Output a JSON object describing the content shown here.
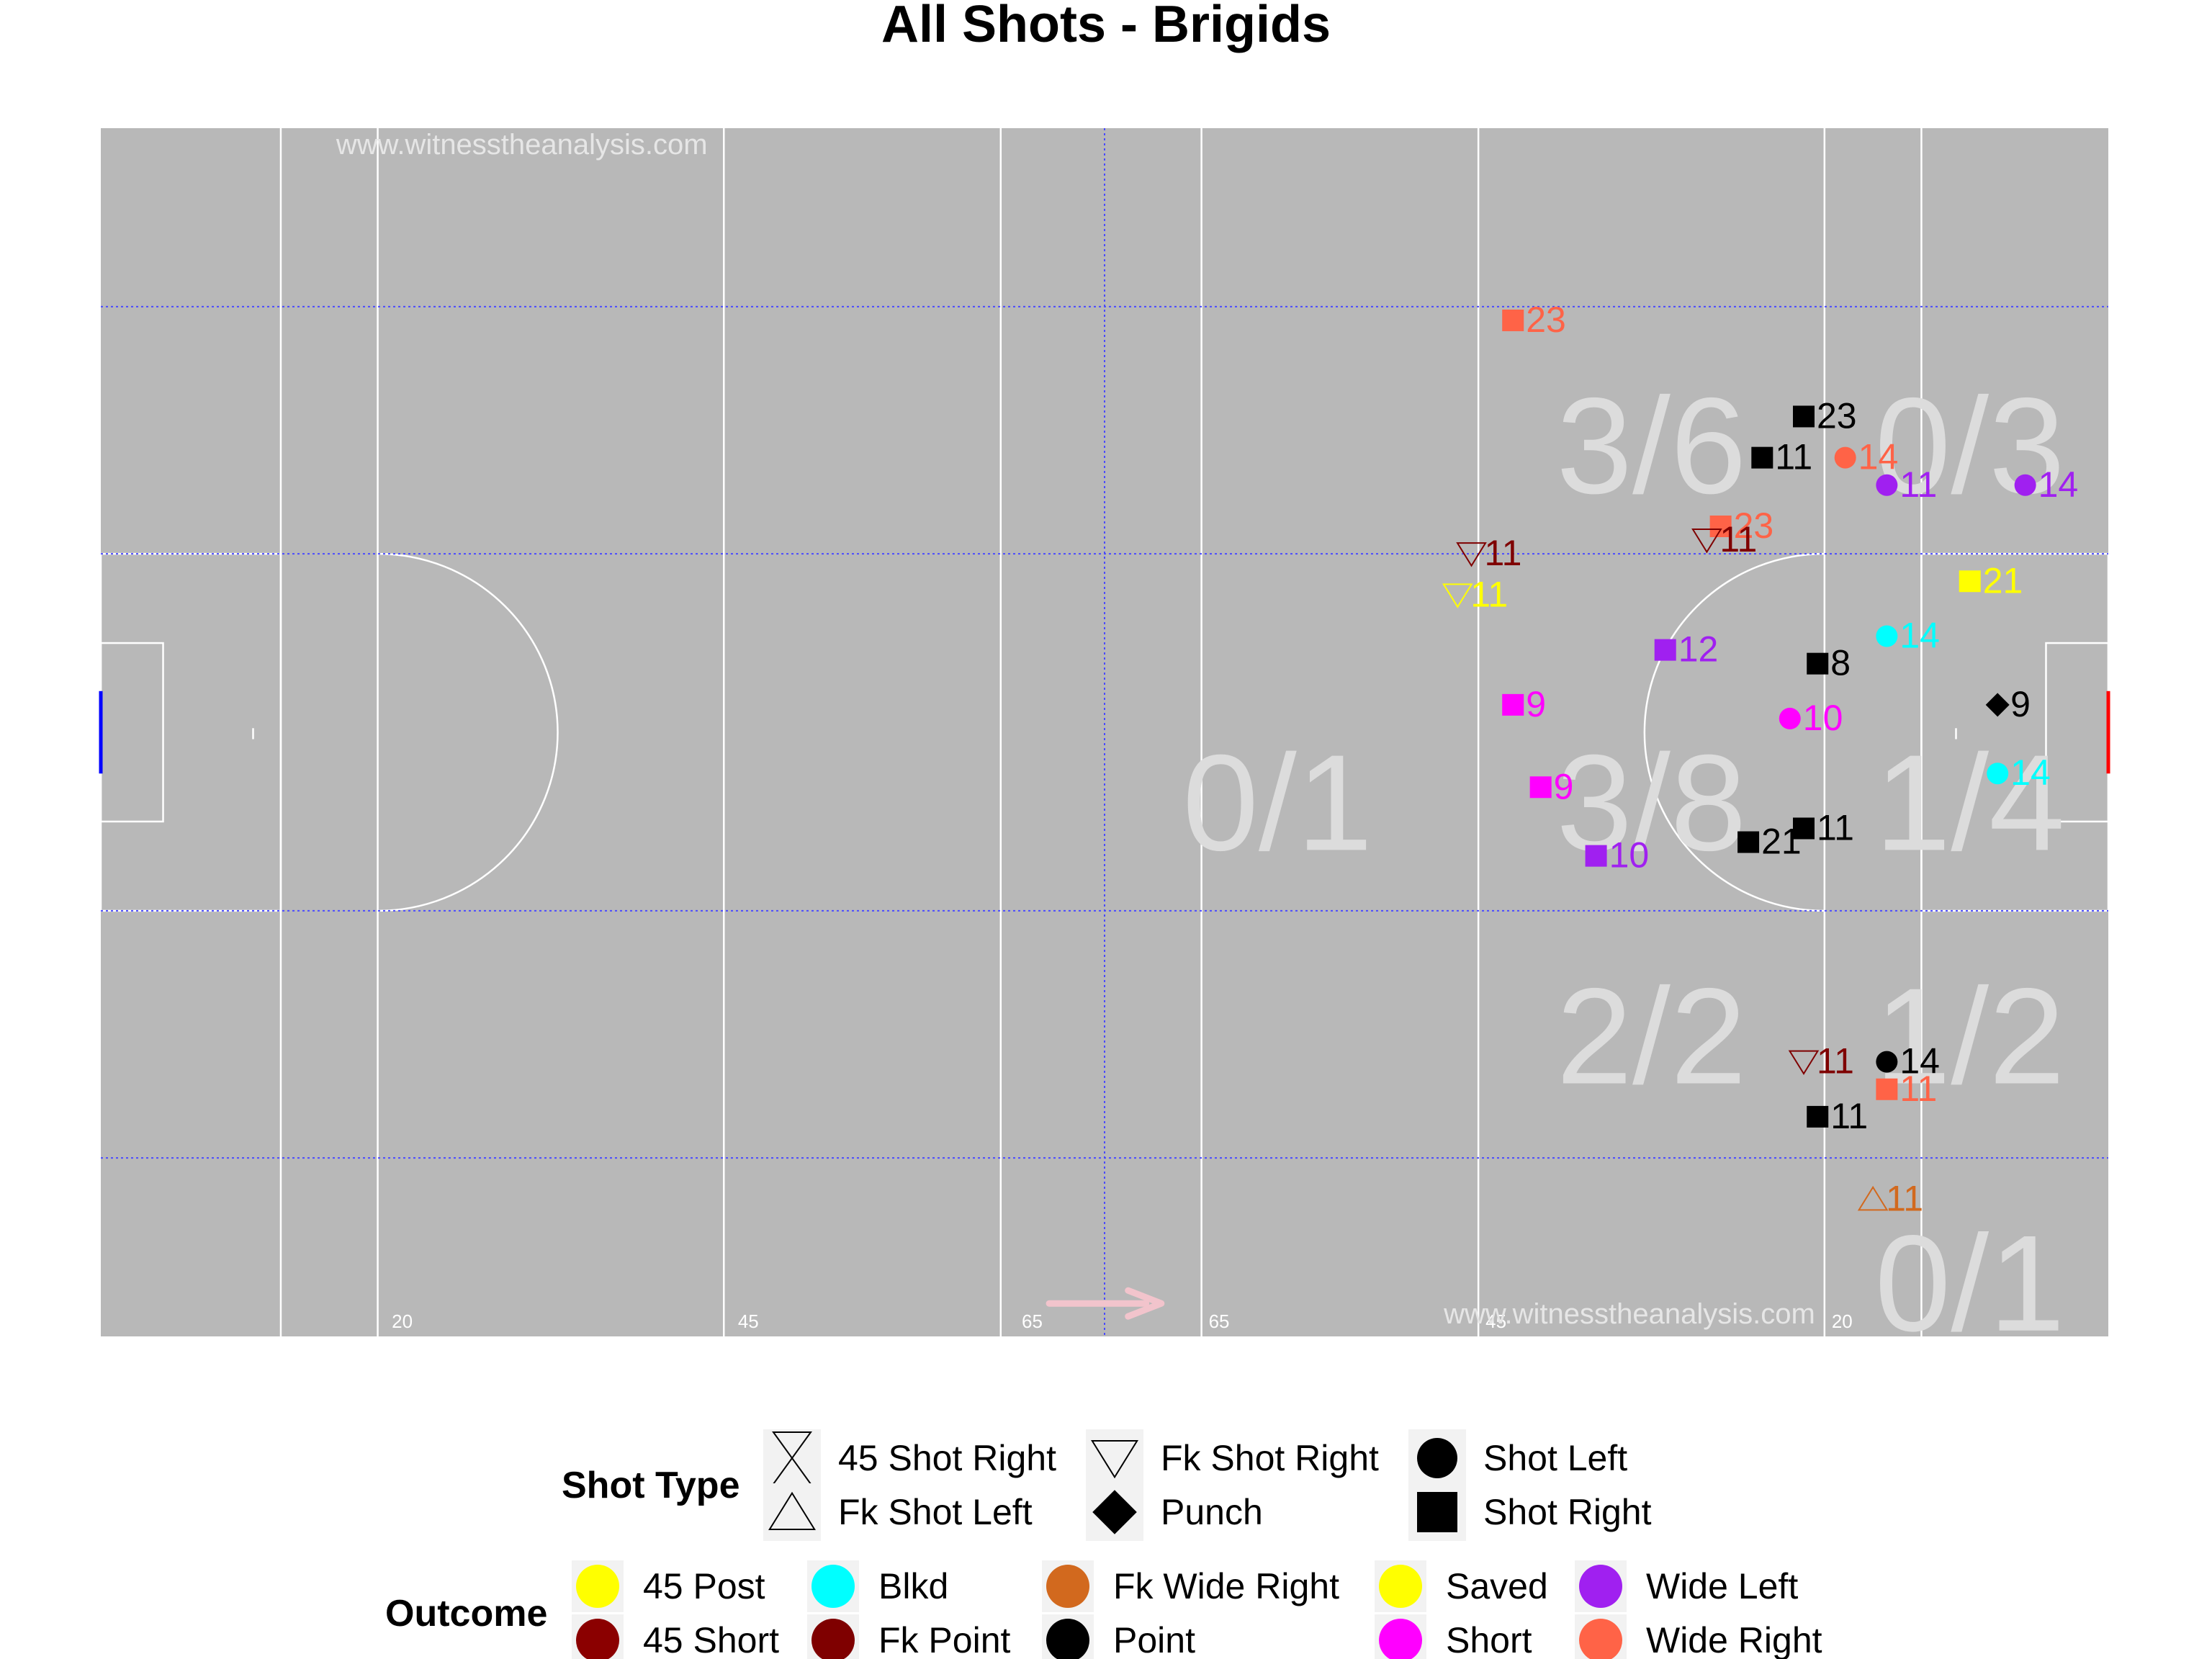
{
  "chart_data": {
    "type": "scatter",
    "title": "All Shots - Brigids",
    "watermark": "www.witnesstheanalysis.com",
    "pitch": {
      "xlim": [
        0,
        145
      ],
      "ylim": [
        0,
        88
      ],
      "distance_markers": [
        {
          "x": 20.5,
          "label": "20"
        },
        {
          "x": 45.5,
          "label": "45"
        },
        {
          "x": 66,
          "label": "65"
        },
        {
          "x": 79.5,
          "label": "65"
        },
        {
          "x": 99.5,
          "label": "45"
        },
        {
          "x": 124.5,
          "label": "20"
        }
      ],
      "attack_direction": "right",
      "arrow_color": "#f2c4cc",
      "pitch_color": "#b8b8b8",
      "left_goal_color": "#0000ff",
      "right_goal_color": "#ff0000"
    },
    "zones": [
      {
        "label": "3/6",
        "x": 112,
        "y": 65
      },
      {
        "label": "0/3",
        "x": 135,
        "y": 65
      },
      {
        "label": "0/1",
        "x": 85,
        "y": 39
      },
      {
        "label": "3/8",
        "x": 112,
        "y": 39
      },
      {
        "label": "1/4",
        "x": 135,
        "y": 39
      },
      {
        "label": "2/2",
        "x": 112,
        "y": 22
      },
      {
        "label": "1/2",
        "x": 135,
        "y": 22
      },
      {
        "label": "0/1",
        "x": 135,
        "y": 4
      }
    ],
    "outcome_colors": {
      "45 Post": "#ffff00",
      "45 Short": "#8b0000",
      "Blkd": "#00ffff",
      "Fk Point": "#7f0000",
      "Fk Wide Right": "#d2691e",
      "Point": "#000000",
      "Saved": "#ffff00",
      "Short": "#ff00ff",
      "Wide Left": "#a020f0",
      "Wide Right": "#ff6347"
    },
    "shot_types": [
      "45 Shot Right",
      "Fk Shot Left",
      "Fk Shot Right",
      "Punch",
      "Shot Left",
      "Shot Right"
    ],
    "points": [
      {
        "x": 102,
        "y": 74,
        "label": "23",
        "shape": "Shot Right",
        "outcome": "Wide Right"
      },
      {
        "x": 123,
        "y": 67,
        "label": "23",
        "shape": "Shot Right",
        "outcome": "Point"
      },
      {
        "x": 120,
        "y": 64,
        "label": "11",
        "shape": "Shot Right",
        "outcome": "Point"
      },
      {
        "x": 126,
        "y": 64,
        "label": "14",
        "shape": "Shot Left",
        "outcome": "Wide Right"
      },
      {
        "x": 129,
        "y": 62,
        "label": "11",
        "shape": "Shot Left",
        "outcome": "Wide Left"
      },
      {
        "x": 139,
        "y": 62,
        "label": "14",
        "shape": "Shot Left",
        "outcome": "Wide Left"
      },
      {
        "x": 117,
        "y": 59,
        "label": "23",
        "shape": "Shot Right",
        "outcome": "Wide Right"
      },
      {
        "x": 116,
        "y": 58,
        "label": "11",
        "shape": "Fk Shot Right",
        "outcome": "Fk Point"
      },
      {
        "x": 99,
        "y": 57,
        "label": "11",
        "shape": "Fk Shot Right",
        "outcome": "Fk Point"
      },
      {
        "x": 98,
        "y": 54,
        "label": "11",
        "shape": "Fk Shot Right",
        "outcome": "Saved"
      },
      {
        "x": 135,
        "y": 55,
        "label": "21",
        "shape": "Shot Right",
        "outcome": "Saved"
      },
      {
        "x": 129,
        "y": 51,
        "label": "14",
        "shape": "Shot Left",
        "outcome": "Blkd"
      },
      {
        "x": 113,
        "y": 50,
        "label": "12",
        "shape": "Shot Right",
        "outcome": "Wide Left"
      },
      {
        "x": 124,
        "y": 49,
        "label": "8",
        "shape": "Shot Right",
        "outcome": "Point"
      },
      {
        "x": 102,
        "y": 46,
        "label": "9",
        "shape": "Shot Right",
        "outcome": "Short"
      },
      {
        "x": 122,
        "y": 45,
        "label": "10",
        "shape": "Shot Left",
        "outcome": "Short"
      },
      {
        "x": 137,
        "y": 46,
        "label": "9",
        "shape": "Punch",
        "outcome": "Point"
      },
      {
        "x": 104,
        "y": 40,
        "label": "9",
        "shape": "Shot Right",
        "outcome": "Short"
      },
      {
        "x": 137,
        "y": 41,
        "label": "14",
        "shape": "Shot Left",
        "outcome": "Blkd"
      },
      {
        "x": 123,
        "y": 37,
        "label": "11",
        "shape": "Shot Right",
        "outcome": "Point"
      },
      {
        "x": 119,
        "y": 36,
        "label": "21",
        "shape": "Shot Right",
        "outcome": "Point"
      },
      {
        "x": 108,
        "y": 35,
        "label": "10",
        "shape": "Shot Right",
        "outcome": "Wide Left"
      },
      {
        "x": 123,
        "y": 20,
        "label": "11",
        "shape": "Fk Shot Right",
        "outcome": "Fk Point"
      },
      {
        "x": 129,
        "y": 20,
        "label": "14",
        "shape": "Shot Left",
        "outcome": "Point"
      },
      {
        "x": 129,
        "y": 18,
        "label": "11",
        "shape": "Shot Right",
        "outcome": "Wide Right"
      },
      {
        "x": 124,
        "y": 16,
        "label": "11",
        "shape": "Shot Right",
        "outcome": "Point"
      },
      {
        "x": 128,
        "y": 10,
        "label": "11",
        "shape": "Fk Shot Left",
        "outcome": "Fk Wide Right"
      }
    ],
    "legend": {
      "shot_type_title": "Shot Type",
      "shot_type_items": [
        {
          "label": "45 Shot Right",
          "shape": "45 Shot Right"
        },
        {
          "label": "Fk Shot Left",
          "shape": "Fk Shot Left"
        },
        {
          "label": "Fk Shot Right",
          "shape": "Fk Shot Right"
        },
        {
          "label": "Punch",
          "shape": "Punch"
        },
        {
          "label": "Shot Left",
          "shape": "Shot Left"
        },
        {
          "label": "Shot Right",
          "shape": "Shot Right"
        }
      ],
      "outcome_title": "Outcome",
      "outcome_items": [
        {
          "label": "45 Post",
          "color": "#ffff00"
        },
        {
          "label": "45 Short",
          "color": "#8b0000"
        },
        {
          "label": "Blkd",
          "color": "#00ffff"
        },
        {
          "label": "Fk Point",
          "color": "#7f0000"
        },
        {
          "label": "Fk Wide Right",
          "color": "#d2691e"
        },
        {
          "label": "Point",
          "color": "#000000"
        },
        {
          "label": "Saved",
          "color": "#ffff00"
        },
        {
          "label": "Short",
          "color": "#ff00ff"
        },
        {
          "label": "Wide Left",
          "color": "#a020f0"
        },
        {
          "label": "Wide Right",
          "color": "#ff6347"
        }
      ]
    }
  }
}
